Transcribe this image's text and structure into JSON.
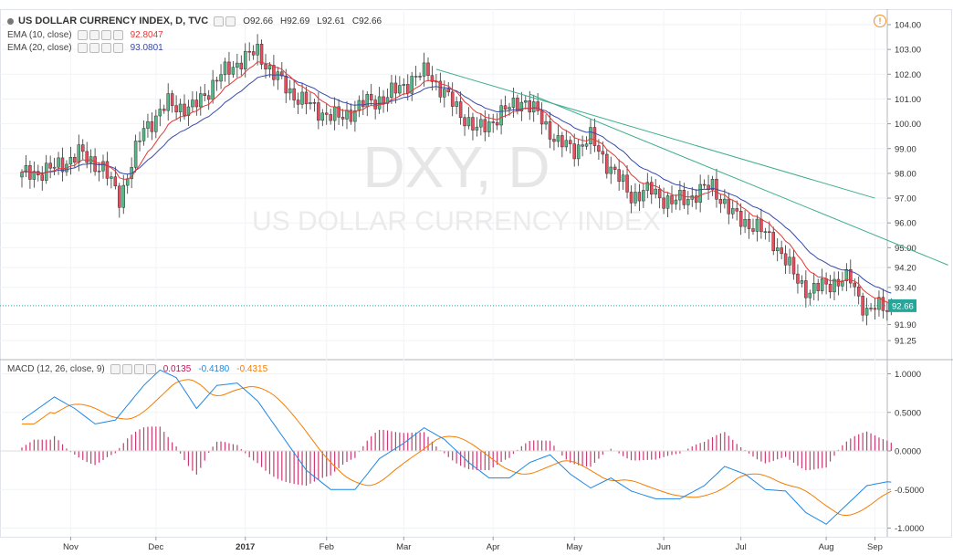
{
  "header": {
    "title": "US DOLLAR CURRENCY INDEX, D, TVC",
    "ohlc": {
      "o": "O92.66",
      "h": "H92.69",
      "l": "L92.61",
      "c": "C92.66"
    },
    "ema10": {
      "label": "EMA (10, close)",
      "value": "92.8047",
      "color": "#e53935"
    },
    "ema20": {
      "label": "EMA (20, close)",
      "value": "93.0801",
      "color": "#3949ab"
    },
    "alert_icon": "exclamation-icon"
  },
  "macd_header": {
    "label": "MACD (12, 26, close, 9)",
    "hist_value": "0.0135",
    "macd_value": "-0.4180",
    "signal_value": "-0.4315",
    "colors": {
      "hist": "#c2185b",
      "macd": "#1e88e5",
      "signal": "#f57c00"
    }
  },
  "watermark": {
    "symbol": "DXY, D",
    "name": "US DOLLAR CURRENCY INDEX"
  },
  "chart_data": [
    {
      "type": "candlestick",
      "x_ticks": [
        "Nov",
        "Dec",
        "2017",
        "Feb",
        "Mar",
        "Apr",
        "May",
        "Jun",
        "Jul",
        "Aug",
        "Sep"
      ],
      "y_ticks": [
        "104.00",
        "103.00",
        "102.00",
        "101.00",
        "100.00",
        "99.00",
        "98.00",
        "97.00",
        "96.00",
        "95.00",
        "94.20",
        "93.40",
        "91.90",
        "91.25"
      ],
      "ylim": [
        91.0,
        104.3
      ],
      "last_price": "92.66",
      "colors": {
        "up": "#53b987",
        "down": "#eb4d5c"
      },
      "series": [
        {
          "name": "EMA (10, close)",
          "color": "#e53935"
        },
        {
          "name": "EMA (20, close)",
          "color": "#3949ab"
        }
      ],
      "anchors": [
        [
          0,
          97.9
        ],
        [
          8,
          98.2
        ],
        [
          14,
          98.8
        ],
        [
          20,
          98.2
        ],
        [
          24,
          97.0
        ],
        [
          30,
          99.8
        ],
        [
          36,
          100.8
        ],
        [
          42,
          100.6
        ],
        [
          48,
          101.8
        ],
        [
          54,
          102.6
        ],
        [
          58,
          102.9
        ],
        [
          62,
          102.0
        ],
        [
          66,
          101.3
        ],
        [
          72,
          100.6
        ],
        [
          78,
          100.2
        ],
        [
          84,
          100.8
        ],
        [
          90,
          101.1
        ],
        [
          96,
          101.8
        ],
        [
          100,
          102.1
        ],
        [
          105,
          101.0
        ],
        [
          112,
          99.7
        ],
        [
          118,
          100.4
        ],
        [
          123,
          101.0
        ],
        [
          128,
          100.2
        ],
        [
          132,
          99.2
        ],
        [
          136,
          99.0
        ],
        [
          140,
          99.4
        ],
        [
          145,
          98.2
        ],
        [
          150,
          97.1
        ],
        [
          155,
          97.3
        ],
        [
          160,
          96.8
        ],
        [
          165,
          97.1
        ],
        [
          170,
          97.5
        ],
        [
          175,
          96.3
        ],
        [
          180,
          95.9
        ],
        [
          185,
          95.3
        ],
        [
          190,
          93.9
        ],
        [
          194,
          93.2
        ],
        [
          199,
          93.6
        ],
        [
          204,
          93.7
        ],
        [
          208,
          92.4
        ],
        [
          212,
          92.66
        ]
      ],
      "trendlines": [
        {
          "from": [
            102,
            102.2
          ],
          "to": [
            210,
            97.0
          ],
          "color": "#3fae8e"
        },
        {
          "from": [
            125,
            101.2
          ],
          "to": [
            228,
            94.3
          ],
          "color": "#3fae8e"
        }
      ]
    },
    {
      "type": "line",
      "title": "MACD (12, 26, close, 9)",
      "y_ticks": [
        "1.0000",
        "0.5000",
        "0.0000",
        "-0.5000",
        "-1.0000"
      ],
      "ylim": [
        -1.05,
        1.15
      ],
      "series": [
        {
          "name": "MACD",
          "color": "#1e88e5"
        },
        {
          "name": "Signal",
          "color": "#f57c00"
        },
        {
          "name": "Histogram",
          "color": "#c2185b"
        }
      ],
      "macd_anchors": [
        [
          0,
          0.4
        ],
        [
          8,
          0.7
        ],
        [
          13,
          0.55
        ],
        [
          18,
          0.35
        ],
        [
          23,
          0.4
        ],
        [
          30,
          0.85
        ],
        [
          34,
          1.05
        ],
        [
          38,
          0.95
        ],
        [
          43,
          0.55
        ],
        [
          48,
          0.85
        ],
        [
          53,
          0.88
        ],
        [
          58,
          0.65
        ],
        [
          64,
          0.2
        ],
        [
          70,
          -0.25
        ],
        [
          76,
          -0.5
        ],
        [
          82,
          -0.5
        ],
        [
          88,
          -0.1
        ],
        [
          94,
          0.1
        ],
        [
          99,
          0.3
        ],
        [
          104,
          0.15
        ],
        [
          110,
          -0.15
        ],
        [
          115,
          -0.35
        ],
        [
          120,
          -0.35
        ],
        [
          125,
          -0.15
        ],
        [
          130,
          -0.05
        ],
        [
          135,
          -0.3
        ],
        [
          140,
          -0.48
        ],
        [
          145,
          -0.35
        ],
        [
          150,
          -0.52
        ],
        [
          156,
          -0.62
        ],
        [
          162,
          -0.62
        ],
        [
          168,
          -0.45
        ],
        [
          173,
          -0.2
        ],
        [
          178,
          -0.3
        ],
        [
          183,
          -0.5
        ],
        [
          188,
          -0.52
        ],
        [
          193,
          -0.8
        ],
        [
          198,
          -0.95
        ],
        [
          203,
          -0.7
        ],
        [
          208,
          -0.45
        ],
        [
          213,
          -0.4
        ],
        [
          218,
          -0.42
        ]
      ]
    }
  ]
}
